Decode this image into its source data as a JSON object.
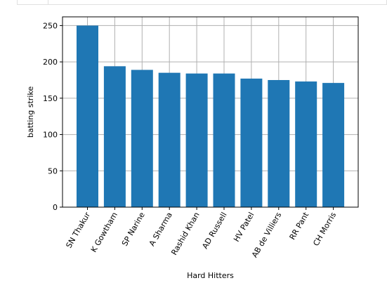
{
  "chart_data": {
    "type": "bar",
    "categories": [
      "SN Thakur",
      "K Gowtham",
      "SP Narine",
      "A Sharma",
      "Rashid Khan",
      "AD Russell",
      "HV Patel",
      "AB de Villiers",
      "RR Pant",
      "CH Morris"
    ],
    "values": [
      250,
      194,
      189,
      185,
      184,
      184,
      177,
      175,
      173,
      171
    ],
    "xlabel": "Hard Hitters",
    "ylabel": "batting strike",
    "ylim": [
      0,
      262
    ],
    "yticks": [
      0,
      50,
      100,
      150,
      200,
      250
    ],
    "grid": true,
    "bar_color": "#1f77b4"
  }
}
